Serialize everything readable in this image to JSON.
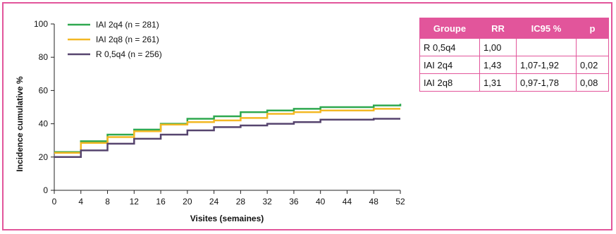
{
  "chart_data": {
    "type": "line",
    "step": true,
    "xlabel": "Visites (semaines)",
    "ylabel": "Incidence cumulative %",
    "xticks": [
      0,
      4,
      8,
      12,
      16,
      20,
      24,
      28,
      32,
      36,
      40,
      44,
      48,
      52
    ],
    "yticks": [
      0,
      20,
      40,
      60,
      80,
      100
    ],
    "xlim": [
      0,
      52
    ],
    "ylim": [
      0,
      100
    ],
    "grid": false,
    "legend_position": "top-left",
    "series": [
      {
        "name": "IAI 2q4 (n = 281)",
        "color": "#2ea84f",
        "x": [
          0,
          4,
          8,
          12,
          16,
          20,
          24,
          28,
          32,
          36,
          40,
          44,
          48,
          52
        ],
        "y": [
          23,
          29.5,
          33.5,
          36.5,
          40,
          43,
          44.5,
          47,
          48,
          49,
          50,
          50,
          51,
          52
        ]
      },
      {
        "name": "IAI 2q8 (n = 261)",
        "color": "#f3b824",
        "x": [
          0,
          4,
          8,
          12,
          16,
          20,
          24,
          28,
          32,
          36,
          40,
          44,
          48,
          52
        ],
        "y": [
          22.5,
          28.5,
          32,
          35.5,
          39.5,
          41,
          42,
          43.5,
          46,
          47,
          48,
          48,
          49,
          49
        ]
      },
      {
        "name": "R 0,5q4 (n = 256)",
        "color": "#56446e",
        "x": [
          0,
          4,
          8,
          12,
          16,
          20,
          24,
          28,
          32,
          36,
          40,
          44,
          48,
          52
        ],
        "y": [
          20,
          24,
          28,
          31,
          33.5,
          36,
          38,
          39,
          40,
          41,
          42.5,
          42.5,
          43,
          43
        ]
      }
    ]
  },
  "table": {
    "headers": [
      "Groupe",
      "RR",
      "IC95 %",
      "p"
    ],
    "rows": [
      [
        "R 0,5q4",
        "1,00",
        "",
        ""
      ],
      [
        "IAI 2q4",
        "1,43",
        "1,07-1,92",
        "0,02"
      ],
      [
        "IAI 2q8",
        "1,31",
        "0,97-1,78",
        "0,08"
      ]
    ]
  }
}
